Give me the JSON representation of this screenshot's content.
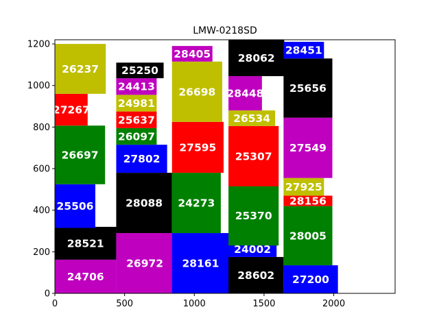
{
  "chart_data": {
    "type": "bar",
    "title": "LMW-0218SD",
    "xlabel": "",
    "ylabel": "",
    "xlim": [
      0,
      2440
    ],
    "ylim": [
      0,
      1220
    ],
    "grid": false,
    "x_ticks": [
      0,
      500,
      1000,
      1500,
      2000
    ],
    "y_ticks": [
      0,
      200,
      400,
      600,
      800,
      1000,
      1200
    ],
    "colors": {
      "m": "#bf00bf",
      "k": "#000000",
      "y": "#bfbf00",
      "r": "#ff0000",
      "g": "#008000",
      "b": "#0000ff"
    },
    "rectangles": [
      {
        "label": "24706",
        "x": 0,
        "y": 0,
        "w": 440,
        "h": 162,
        "color": "m"
      },
      {
        "label": "28521",
        "x": 0,
        "y": 162,
        "w": 440,
        "h": 158,
        "color": "k"
      },
      {
        "label": "25506",
        "x": 0,
        "y": 315,
        "w": 290,
        "h": 210,
        "color": "b"
      },
      {
        "label": "26697",
        "x": 0,
        "y": 525,
        "w": 360,
        "h": 282,
        "color": "g"
      },
      {
        "label": "27267",
        "x": 0,
        "y": 807,
        "w": 235,
        "h": 153,
        "color": "r"
      },
      {
        "label": "26237",
        "x": 0,
        "y": 960,
        "w": 365,
        "h": 240,
        "color": "y"
      },
      {
        "label": "26972",
        "x": 440,
        "y": 0,
        "w": 410,
        "h": 290,
        "color": "m"
      },
      {
        "label": "28088",
        "x": 440,
        "y": 290,
        "w": 400,
        "h": 290,
        "color": "k"
      },
      {
        "label": "27802",
        "x": 440,
        "y": 580,
        "w": 365,
        "h": 135,
        "color": "b"
      },
      {
        "label": "26097",
        "x": 440,
        "y": 715,
        "w": 290,
        "h": 80,
        "color": "g"
      },
      {
        "label": "25637",
        "x": 440,
        "y": 795,
        "w": 290,
        "h": 80,
        "color": "r"
      },
      {
        "label": "24981",
        "x": 440,
        "y": 875,
        "w": 290,
        "h": 80,
        "color": "y"
      },
      {
        "label": "24413",
        "x": 440,
        "y": 955,
        "w": 290,
        "h": 80,
        "color": "m"
      },
      {
        "label": "25250",
        "x": 440,
        "y": 1035,
        "w": 340,
        "h": 75,
        "color": "k"
      },
      {
        "label": "28161",
        "x": 840,
        "y": 0,
        "w": 410,
        "h": 290,
        "color": "b"
      },
      {
        "label": "24273",
        "x": 840,
        "y": 290,
        "w": 350,
        "h": 290,
        "color": "g"
      },
      {
        "label": "27595",
        "x": 840,
        "y": 580,
        "w": 370,
        "h": 245,
        "color": "r"
      },
      {
        "label": "26698",
        "x": 840,
        "y": 825,
        "w": 360,
        "h": 290,
        "color": "y"
      },
      {
        "label": "28405",
        "x": 840,
        "y": 1115,
        "w": 290,
        "h": 75,
        "color": "m"
      },
      {
        "label": "28602",
        "x": 1245,
        "y": 0,
        "w": 395,
        "h": 175,
        "color": "k"
      },
      {
        "label": "24002",
        "x": 1245,
        "y": 175,
        "w": 345,
        "h": 75,
        "color": "b"
      },
      {
        "label": "25370",
        "x": 1245,
        "y": 230,
        "w": 360,
        "h": 290,
        "color": "g"
      },
      {
        "label": "25307",
        "x": 1245,
        "y": 515,
        "w": 360,
        "h": 290,
        "color": "r"
      },
      {
        "label": "26534",
        "x": 1245,
        "y": 805,
        "w": 335,
        "h": 75,
        "color": "y"
      },
      {
        "label": "28448",
        "x": 1245,
        "y": 880,
        "w": 240,
        "h": 165,
        "color": "m"
      },
      {
        "label": "28062",
        "x": 1245,
        "y": 1045,
        "w": 400,
        "h": 175,
        "color": "k"
      },
      {
        "label": "27200",
        "x": 1640,
        "y": 0,
        "w": 390,
        "h": 135,
        "color": "b"
      },
      {
        "label": "28005",
        "x": 1640,
        "y": 135,
        "w": 350,
        "h": 285,
        "color": "g"
      },
      {
        "label": "28156",
        "x": 1640,
        "y": 420,
        "w": 350,
        "h": 50,
        "color": "r"
      },
      {
        "label": "27925",
        "x": 1640,
        "y": 470,
        "w": 290,
        "h": 85,
        "color": "y"
      },
      {
        "label": "27549",
        "x": 1640,
        "y": 555,
        "w": 350,
        "h": 290,
        "color": "m"
      },
      {
        "label": "25656",
        "x": 1640,
        "y": 845,
        "w": 350,
        "h": 285,
        "color": "k"
      },
      {
        "label": "28451",
        "x": 1640,
        "y": 1130,
        "w": 290,
        "h": 80,
        "color": "b"
      }
    ]
  }
}
